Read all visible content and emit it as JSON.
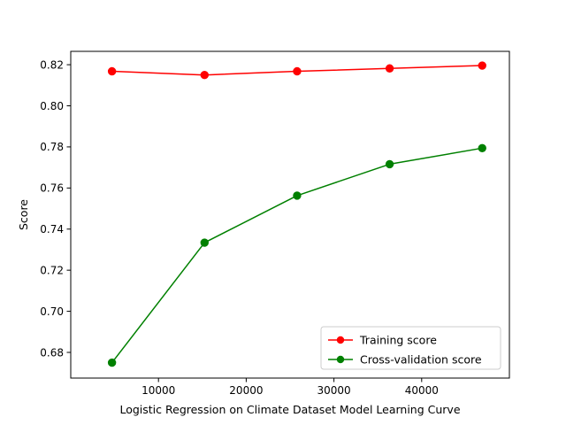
{
  "chart_data": {
    "type": "line",
    "title": "",
    "xlabel": "Logistic Regression on Climate Dataset Model Learning Curve",
    "ylabel": "Score",
    "xlim": [
      0,
      50000
    ],
    "ylim": [
      0.6675,
      0.8265
    ],
    "x_ticks": [
      10000,
      20000,
      30000,
      40000
    ],
    "x_tick_labels": [
      "10000",
      "20000",
      "30000",
      "40000"
    ],
    "y_ticks": [
      0.68,
      0.7,
      0.72,
      0.74,
      0.76,
      0.78,
      0.8,
      0.82
    ],
    "y_tick_labels": [
      "0.68",
      "0.70",
      "0.72",
      "0.74",
      "0.76",
      "0.78",
      "0.80",
      "0.82"
    ],
    "grid": false,
    "legend_position": "lower-right",
    "x": [
      4700,
      15250,
      25800,
      36350,
      46900
    ],
    "series": [
      {
        "name": "Training score",
        "color": "#ff0000",
        "marker": "circle",
        "values": [
          0.8168,
          0.815,
          0.8168,
          0.8182,
          0.8196
        ]
      },
      {
        "name": "Cross-validation score",
        "color": "#008000",
        "marker": "circle",
        "values": [
          0.675,
          0.7334,
          0.7563,
          0.7716,
          0.7794
        ]
      }
    ]
  }
}
